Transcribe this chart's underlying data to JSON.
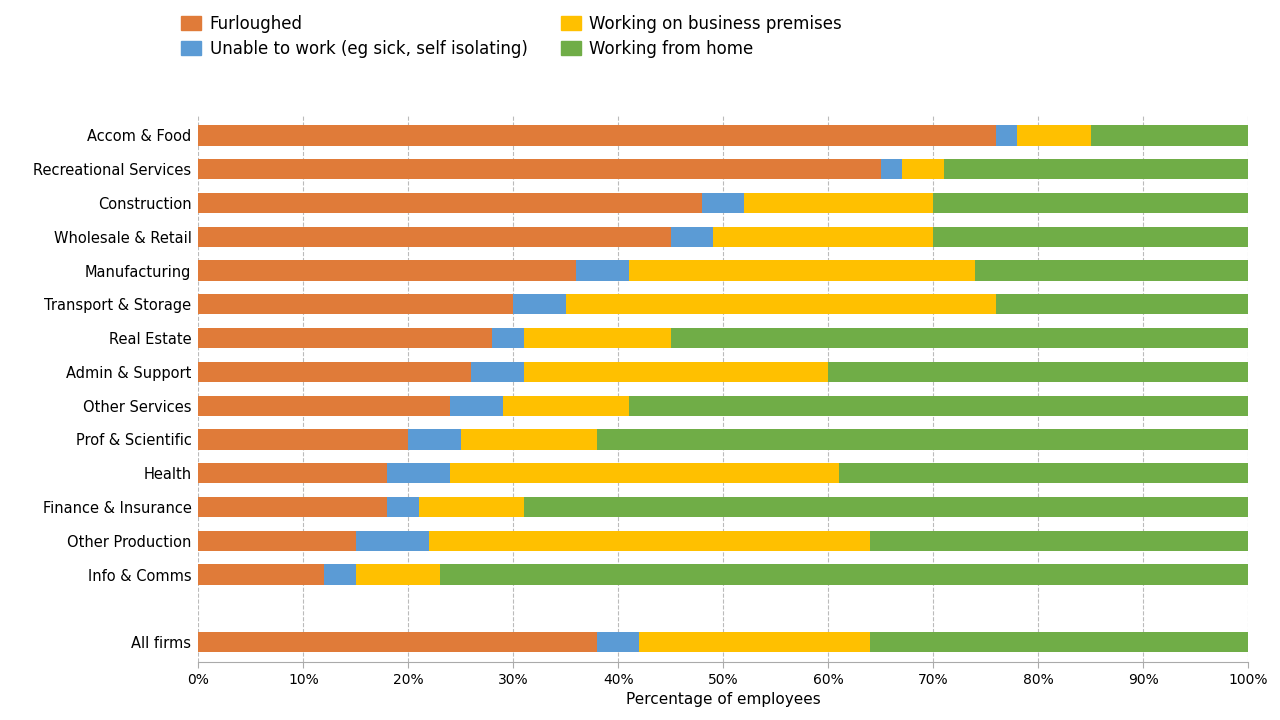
{
  "categories": [
    "Accom & Food",
    "Recreational Services",
    "Construction",
    "Wholesale & Retail",
    "Manufacturing",
    "Transport & Storage",
    "Real Estate",
    "Admin & Support",
    "Other Services",
    "Prof & Scientific",
    "Health",
    "Finance & Insurance",
    "Other Production",
    "Info & Comms",
    "",
    "All firms"
  ],
  "furloughed": [
    76,
    65,
    48,
    45,
    36,
    30,
    28,
    26,
    24,
    20,
    18,
    18,
    15,
    12,
    0,
    38
  ],
  "unable_to_work": [
    2,
    2,
    4,
    4,
    5,
    5,
    3,
    5,
    5,
    5,
    6,
    3,
    7,
    3,
    0,
    4
  ],
  "working_on_premises": [
    7,
    4,
    18,
    21,
    33,
    41,
    14,
    29,
    12,
    13,
    37,
    10,
    42,
    8,
    0,
    22
  ],
  "working_from_home": [
    15,
    29,
    30,
    30,
    26,
    24,
    55,
    40,
    59,
    62,
    39,
    69,
    36,
    77,
    0,
    36
  ],
  "colors": {
    "furloughed": "#E07B39",
    "unable_to_work": "#5B9BD5",
    "working_on_premises": "#FFC000",
    "working_from_home": "#70AD47"
  },
  "legend_labels": [
    "Furloughed",
    "Unable to work (eg sick, self isolating)",
    "Working on business premises",
    "Working from home"
  ],
  "xlabel": "Percentage of employees",
  "background_color": "#FFFFFF",
  "grid_color": "#AAAAAA"
}
